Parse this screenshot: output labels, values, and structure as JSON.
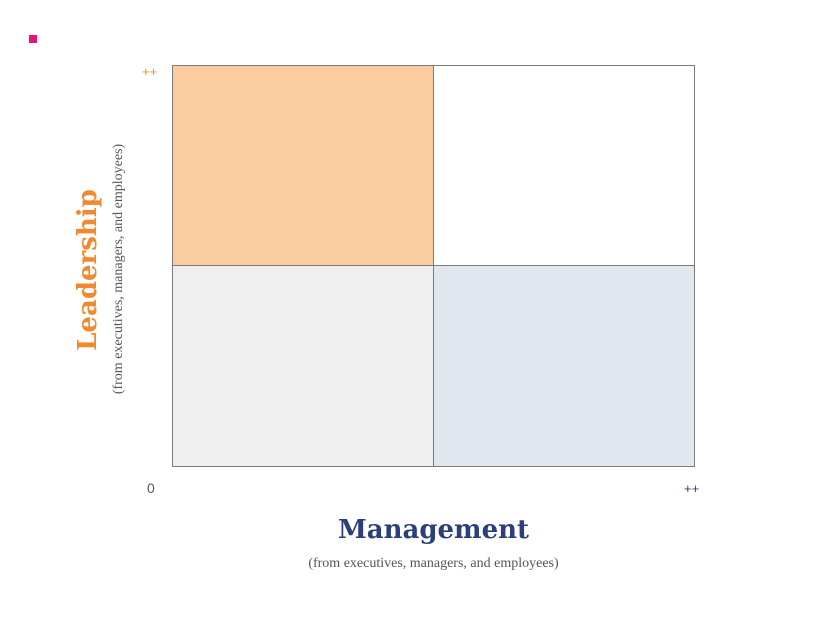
{
  "diagram": {
    "x_axis": {
      "title": "Management",
      "subtitle": "(from executives, managers, and employees)",
      "max_label": "++"
    },
    "y_axis": {
      "title": "Leadership",
      "subtitle": "(from executives, managers, and employees)",
      "max_label": "++"
    },
    "origin_label": "0",
    "colors": {
      "leadership_accent": "#f0892f",
      "management_accent": "#2b3f7a",
      "bullet": "#e8127a",
      "quadrant_top_left": "#fbcca0",
      "quadrant_top_right": "#ffffff",
      "quadrant_bottom_left": "#efefef",
      "quadrant_bottom_right": "#e2e6ee",
      "grid_line": "#7b7b7b"
    }
  }
}
